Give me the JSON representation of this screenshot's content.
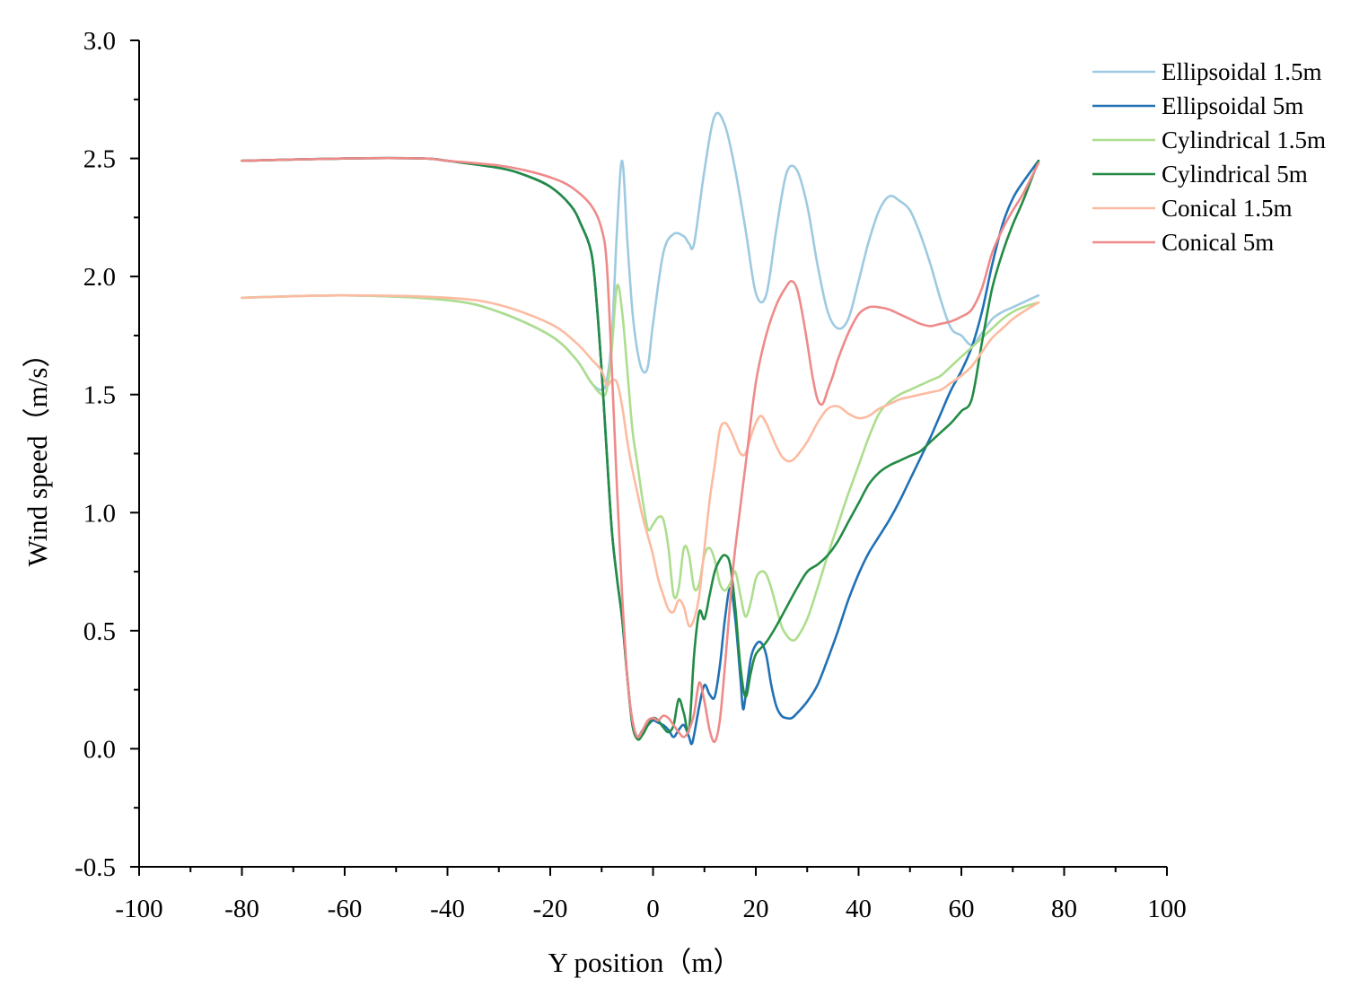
{
  "chart_data": {
    "type": "line",
    "xlabel": "Y position（m）",
    "ylabel": "Wind speed（m/s）",
    "xlim": [
      -100,
      100
    ],
    "ylim": [
      -0.5,
      3.0
    ],
    "xticks": [
      "-100",
      "-80",
      "-60",
      "-40",
      "-20",
      "0",
      "20",
      "40",
      "60",
      "80",
      "100"
    ],
    "yticks": [
      "-0.5",
      "0.0",
      "0.5",
      "1.0",
      "1.5",
      "2.0",
      "2.5",
      "3.0"
    ],
    "grid": false,
    "legend_position": "top-right",
    "series": [
      {
        "name": "Ellipsoidal 1.5m",
        "color": "#9ecae1",
        "x": [
          -80,
          -60,
          -40,
          -30,
          -20,
          -15,
          -12,
          -10,
          -9,
          -8,
          -7,
          -6,
          -5,
          -4,
          -3,
          -2,
          -1,
          0,
          2,
          4,
          6,
          7,
          8,
          10,
          12,
          14,
          16,
          18,
          20,
          22,
          24,
          26,
          28,
          30,
          32,
          34,
          36,
          38,
          40,
          42,
          44,
          46,
          48,
          50,
          52,
          54,
          56,
          58,
          60,
          62,
          64,
          66,
          68,
          70,
          72,
          75
        ],
        "y": [
          1.91,
          1.92,
          1.9,
          1.85,
          1.75,
          1.65,
          1.55,
          1.52,
          1.56,
          1.75,
          2.2,
          2.49,
          2.15,
          1.85,
          1.68,
          1.6,
          1.62,
          1.8,
          2.1,
          2.18,
          2.17,
          2.14,
          2.14,
          2.45,
          2.68,
          2.64,
          2.45,
          2.2,
          1.93,
          1.92,
          2.2,
          2.44,
          2.45,
          2.3,
          2.05,
          1.85,
          1.78,
          1.82,
          1.98,
          2.15,
          2.28,
          2.34,
          2.32,
          2.28,
          2.18,
          2.05,
          1.9,
          1.78,
          1.75,
          1.71,
          1.76,
          1.82,
          1.85,
          1.87,
          1.89,
          1.92
        ]
      },
      {
        "name": "Ellipsoidal 5m",
        "color": "#2171b5",
        "x": [
          -80,
          -60,
          -45,
          -40,
          -30,
          -25,
          -20,
          -16,
          -14,
          -12,
          -11,
          -10,
          -9,
          -8,
          -7,
          -6,
          -5,
          -4,
          -3,
          -2,
          -1,
          0,
          1,
          2,
          3,
          4,
          5,
          6,
          7,
          7.5,
          8,
          9,
          10,
          11,
          12,
          13,
          14,
          15,
          16,
          17,
          17.5,
          18,
          19,
          20,
          21,
          22,
          23,
          24,
          25,
          26,
          27,
          28,
          30,
          32,
          34,
          36,
          38,
          40,
          42,
          44,
          46,
          48,
          50,
          52,
          54,
          56,
          58,
          60,
          62,
          64,
          66,
          68,
          70,
          72,
          75
        ],
        "y": [
          2.49,
          2.5,
          2.5,
          2.49,
          2.46,
          2.43,
          2.38,
          2.3,
          2.22,
          2.1,
          1.9,
          1.6,
          1.25,
          0.92,
          0.72,
          0.55,
          0.3,
          0.1,
          0.05,
          0.08,
          0.1,
          0.12,
          0.11,
          0.1,
          0.08,
          0.05,
          0.08,
          0.1,
          0.05,
          0.02,
          0.06,
          0.18,
          0.27,
          0.23,
          0.22,
          0.35,
          0.55,
          0.68,
          0.55,
          0.3,
          0.17,
          0.22,
          0.38,
          0.44,
          0.45,
          0.4,
          0.27,
          0.18,
          0.14,
          0.13,
          0.13,
          0.15,
          0.2,
          0.27,
          0.38,
          0.5,
          0.63,
          0.74,
          0.83,
          0.9,
          0.97,
          1.05,
          1.14,
          1.23,
          1.32,
          1.42,
          1.52,
          1.6,
          1.7,
          1.85,
          2.05,
          2.22,
          2.33,
          2.4,
          2.49
        ]
      },
      {
        "name": "Cylindrical 1.5m",
        "color": "#addd8e",
        "x": [
          -80,
          -60,
          -40,
          -30,
          -20,
          -15,
          -12,
          -10,
          -9,
          -8,
          -7,
          -6,
          -5,
          -4,
          -3,
          -2,
          -1,
          0,
          1,
          2,
          3,
          4,
          5,
          6,
          7,
          8,
          9,
          10,
          11,
          12,
          13,
          14,
          15,
          16,
          17,
          18,
          19,
          20,
          21,
          22,
          23,
          24,
          25,
          26,
          27,
          28,
          30,
          32,
          34,
          36,
          38,
          40,
          42,
          44,
          46,
          48,
          50,
          52,
          54,
          56,
          58,
          60,
          62,
          64,
          66,
          68,
          70,
          72,
          75
        ],
        "y": [
          1.91,
          1.92,
          1.9,
          1.85,
          1.75,
          1.65,
          1.55,
          1.5,
          1.52,
          1.7,
          1.96,
          1.85,
          1.6,
          1.35,
          1.2,
          1.05,
          0.93,
          0.95,
          0.98,
          0.97,
          0.85,
          0.65,
          0.68,
          0.85,
          0.82,
          0.68,
          0.7,
          0.82,
          0.85,
          0.8,
          0.7,
          0.67,
          0.7,
          0.75,
          0.65,
          0.56,
          0.62,
          0.72,
          0.75,
          0.74,
          0.68,
          0.6,
          0.52,
          0.48,
          0.46,
          0.47,
          0.55,
          0.68,
          0.82,
          0.95,
          1.08,
          1.2,
          1.32,
          1.42,
          1.47,
          1.5,
          1.52,
          1.54,
          1.56,
          1.58,
          1.62,
          1.66,
          1.7,
          1.74,
          1.78,
          1.82,
          1.85,
          1.87,
          1.89
        ]
      },
      {
        "name": "Cylindrical 5m",
        "color": "#238b45",
        "x": [
          -80,
          -60,
          -45,
          -40,
          -30,
          -25,
          -20,
          -16,
          -14,
          -12,
          -11,
          -10,
          -9,
          -8,
          -7,
          -6,
          -5,
          -4,
          -3,
          -2,
          -1,
          0,
          1,
          2,
          3,
          4,
          5,
          6,
          7,
          8,
          9,
          10,
          11,
          12,
          13,
          14,
          15,
          16,
          17,
          18,
          19,
          20,
          22,
          24,
          26,
          28,
          30,
          32,
          34,
          36,
          38,
          40,
          42,
          44,
          46,
          48,
          50,
          52,
          54,
          56,
          58,
          60,
          62,
          64,
          66,
          68,
          70,
          72,
          75
        ],
        "y": [
          2.49,
          2.5,
          2.5,
          2.49,
          2.46,
          2.43,
          2.38,
          2.3,
          2.22,
          2.1,
          1.9,
          1.6,
          1.25,
          0.92,
          0.72,
          0.55,
          0.3,
          0.1,
          0.04,
          0.06,
          0.1,
          0.13,
          0.12,
          0.09,
          0.07,
          0.1,
          0.21,
          0.15,
          0.08,
          0.4,
          0.58,
          0.55,
          0.65,
          0.75,
          0.8,
          0.82,
          0.78,
          0.6,
          0.35,
          0.22,
          0.32,
          0.4,
          0.45,
          0.52,
          0.6,
          0.68,
          0.75,
          0.78,
          0.82,
          0.88,
          0.96,
          1.04,
          1.12,
          1.17,
          1.2,
          1.22,
          1.24,
          1.26,
          1.3,
          1.34,
          1.38,
          1.43,
          1.48,
          1.72,
          1.95,
          2.1,
          2.22,
          2.32,
          2.49
        ]
      },
      {
        "name": "Conical 1.5m",
        "color": "#fcbba1",
        "x": [
          -80,
          -60,
          -40,
          -30,
          -20,
          -15,
          -12,
          -10,
          -9,
          -8,
          -7,
          -6,
          -5,
          -4,
          -3,
          -2,
          -1,
          0,
          1,
          2,
          3,
          4,
          5,
          6,
          7,
          8,
          9,
          10,
          11,
          12,
          13,
          14,
          15,
          16,
          17,
          18,
          19,
          20,
          21,
          22,
          23,
          24,
          25,
          26,
          27,
          28,
          30,
          32,
          34,
          36,
          38,
          40,
          42,
          44,
          46,
          48,
          50,
          52,
          54,
          56,
          58,
          60,
          62,
          64,
          66,
          68,
          70,
          72,
          75
        ],
        "y": [
          1.91,
          1.92,
          1.91,
          1.88,
          1.8,
          1.72,
          1.65,
          1.6,
          1.54,
          1.56,
          1.55,
          1.45,
          1.3,
          1.18,
          1.08,
          0.98,
          0.9,
          0.82,
          0.72,
          0.65,
          0.59,
          0.58,
          0.63,
          0.6,
          0.52,
          0.55,
          0.65,
          0.85,
          1.05,
          1.2,
          1.35,
          1.38,
          1.35,
          1.3,
          1.25,
          1.25,
          1.32,
          1.38,
          1.41,
          1.38,
          1.33,
          1.28,
          1.24,
          1.22,
          1.22,
          1.24,
          1.3,
          1.38,
          1.44,
          1.45,
          1.42,
          1.4,
          1.41,
          1.44,
          1.46,
          1.48,
          1.49,
          1.5,
          1.51,
          1.52,
          1.55,
          1.58,
          1.62,
          1.68,
          1.74,
          1.78,
          1.82,
          1.85,
          1.89
        ]
      },
      {
        "name": "Conical 5m",
        "color": "#ef8a8a",
        "x": [
          -80,
          -60,
          -45,
          -40,
          -30,
          -25,
          -20,
          -16,
          -12,
          -10,
          -9,
          -8,
          -7,
          -6,
          -5,
          -4,
          -3,
          -2,
          -1,
          0,
          1,
          2,
          3,
          4,
          5,
          6,
          7,
          8,
          9,
          10,
          11,
          12,
          13,
          14,
          15,
          16,
          18,
          20,
          22,
          24,
          26,
          27,
          28,
          29,
          30,
          31,
          32,
          33,
          34,
          35,
          36,
          38,
          40,
          42,
          44,
          46,
          48,
          50,
          52,
          54,
          56,
          58,
          60,
          62,
          64,
          66,
          68,
          70,
          72,
          75
        ],
        "y": [
          2.49,
          2.5,
          2.5,
          2.49,
          2.47,
          2.45,
          2.42,
          2.38,
          2.3,
          2.2,
          2.05,
          1.6,
          1.1,
          0.65,
          0.3,
          0.12,
          0.05,
          0.08,
          0.12,
          0.13,
          0.12,
          0.14,
          0.13,
          0.1,
          0.07,
          0.05,
          0.08,
          0.15,
          0.28,
          0.2,
          0.08,
          0.03,
          0.12,
          0.35,
          0.62,
          0.85,
          1.2,
          1.55,
          1.75,
          1.88,
          1.96,
          1.98,
          1.95,
          1.85,
          1.72,
          1.58,
          1.48,
          1.46,
          1.52,
          1.58,
          1.65,
          1.76,
          1.84,
          1.87,
          1.87,
          1.86,
          1.84,
          1.82,
          1.8,
          1.79,
          1.8,
          1.81,
          1.83,
          1.86,
          1.95,
          2.1,
          2.2,
          2.28,
          2.35,
          2.48
        ]
      }
    ]
  }
}
